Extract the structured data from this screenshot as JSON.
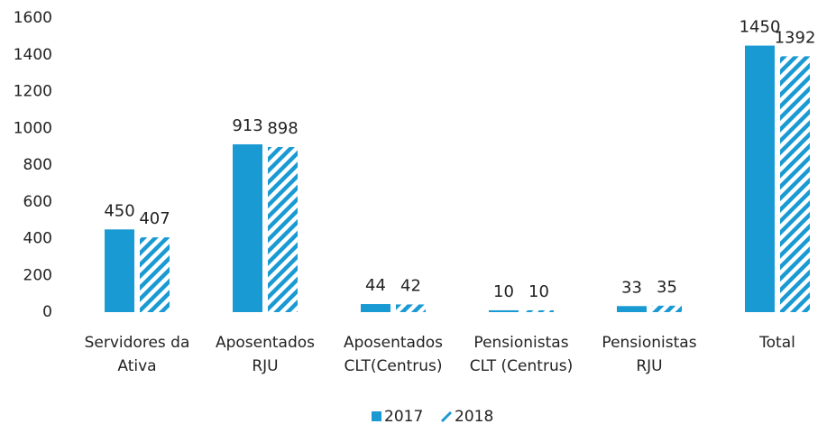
{
  "chart_data": {
    "type": "bar",
    "categories": [
      "Servidores da\nAtiva",
      "Aposentados\nRJU",
      "Aposentados\nCLT(Centrus)",
      "Pensionistas\nCLT (Centrus)",
      "Pensionistas\nRJU",
      "Total"
    ],
    "series": [
      {
        "name": "2017",
        "color": "#1a9ad3",
        "hatched": false,
        "values": [
          450,
          913,
          44,
          10,
          33,
          1450
        ]
      },
      {
        "name": "2018",
        "color": "#1a9ad3",
        "hatched": true,
        "values": [
          407,
          898,
          42,
          10,
          35,
          1392
        ]
      }
    ],
    "ylim": [
      0,
      1600
    ],
    "yticks": [
      0,
      200,
      400,
      600,
      800,
      1000,
      1200,
      1400,
      1600
    ],
    "grid": false,
    "legend": "bottom"
  }
}
